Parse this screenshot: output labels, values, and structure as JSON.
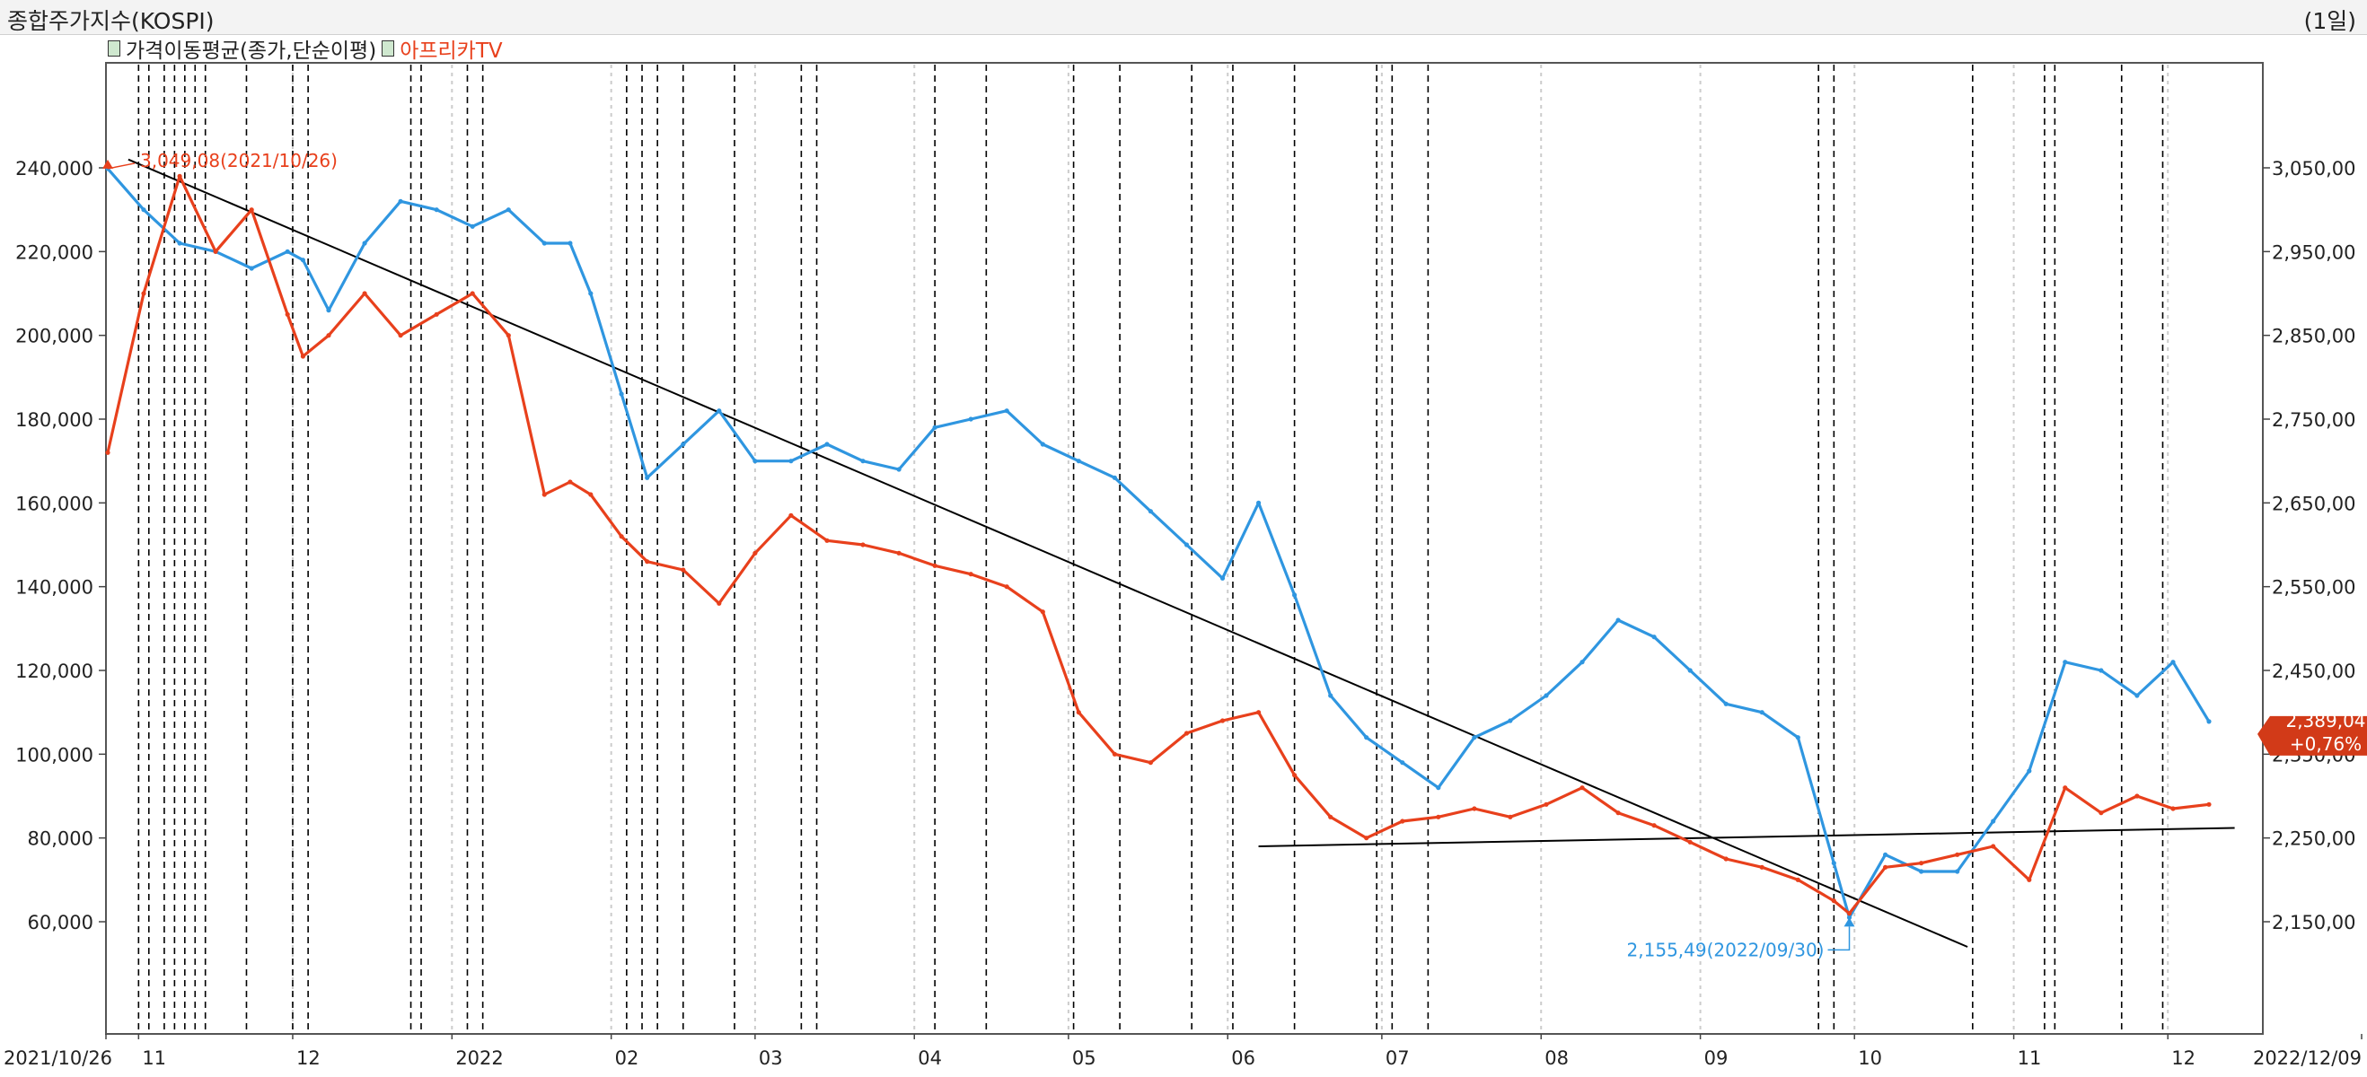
{
  "header": {
    "title": "종합주가지수(KOSPI)",
    "period": "(1일)"
  },
  "legend": {
    "items": [
      {
        "label": "가격이동평균(종가,단순이평)",
        "color": "#222222"
      },
      {
        "label": "아프리카TV",
        "color": "#e8401c"
      }
    ]
  },
  "colors": {
    "kospi": "#2f96e0",
    "afreeca": "#e8401c",
    "trend": "#000000",
    "grid_dotted": "#cccccc",
    "vline_dashed": "#000000",
    "current_badge": "#d23a18"
  },
  "chart_data": {
    "type": "line",
    "title": "종합주가지수(KOSPI)",
    "x_range": [
      "2021/10/26",
      "2022/12/09"
    ],
    "x_ticks": [
      "2021/10/26",
      "11",
      "12",
      "2022",
      "02",
      "03",
      "04",
      "05",
      "06",
      "07",
      "08",
      "09",
      "10",
      "11",
      "12",
      "2022/12/09"
    ],
    "y_left": {
      "min": 44000,
      "max": 252000,
      "ticks": [
        "240,000",
        "220,000",
        "200,000",
        "180,000",
        "160,000",
        "140,000",
        "120,000",
        "100,000",
        "80,000",
        "60,000"
      ]
    },
    "y_right": {
      "min": 2074,
      "max": 3115,
      "ticks": [
        "3,050,00",
        "2,950,00",
        "2,850,00",
        "2,750,00",
        "2,650,00",
        "2,550,00",
        "2,450,00",
        "2,350,00",
        "2,250,00",
        "2,150,00"
      ]
    },
    "series": [
      {
        "name": "종합주가지수(KOSPI)",
        "axis": "right",
        "points": [
          [
            "2021/10/26",
            3049
          ],
          [
            "2021/11/02",
            3000
          ],
          [
            "2021/11/09",
            2960
          ],
          [
            "2021/11/16",
            2950
          ],
          [
            "2021/11/23",
            2930
          ],
          [
            "2021/11/30",
            2950
          ],
          [
            "2021/12/03",
            2940
          ],
          [
            "2021/12/08",
            2880
          ],
          [
            "2021/12/15",
            2960
          ],
          [
            "2021/12/22",
            3010
          ],
          [
            "2021/12/29",
            3000
          ],
          [
            "2022/01/05",
            2980
          ],
          [
            "2022/01/12",
            3000
          ],
          [
            "2022/01/19",
            2960
          ],
          [
            "2022/01/24",
            2960
          ],
          [
            "2022/01/28",
            2900
          ],
          [
            "2022/02/03",
            2780
          ],
          [
            "2022/02/08",
            2680
          ],
          [
            "2022/02/15",
            2720
          ],
          [
            "2022/02/22",
            2760
          ],
          [
            "2022/03/01",
            2700
          ],
          [
            "2022/03/08",
            2700
          ],
          [
            "2022/03/15",
            2720
          ],
          [
            "2022/03/22",
            2700
          ],
          [
            "2022/03/29",
            2690
          ],
          [
            "2022/04/05",
            2740
          ],
          [
            "2022/04/12",
            2750
          ],
          [
            "2022/04/19",
            2760
          ],
          [
            "2022/04/26",
            2720
          ],
          [
            "2022/05/03",
            2700
          ],
          [
            "2022/05/10",
            2680
          ],
          [
            "2022/05/17",
            2640
          ],
          [
            "2022/05/24",
            2600
          ],
          [
            "2022/05/31",
            2560
          ],
          [
            "2022/06/07",
            2650
          ],
          [
            "2022/06/14",
            2540
          ],
          [
            "2022/06/21",
            2420
          ],
          [
            "2022/06/28",
            2370
          ],
          [
            "2022/07/05",
            2340
          ],
          [
            "2022/07/12",
            2310
          ],
          [
            "2022/07/19",
            2370
          ],
          [
            "2022/07/26",
            2390
          ],
          [
            "2022/08/02",
            2420
          ],
          [
            "2022/08/09",
            2460
          ],
          [
            "2022/08/16",
            2510
          ],
          [
            "2022/08/23",
            2490
          ],
          [
            "2022/08/30",
            2450
          ],
          [
            "2022/09/06",
            2410
          ],
          [
            "2022/09/13",
            2400
          ],
          [
            "2022/09/20",
            2370
          ],
          [
            "2022/09/27",
            2220
          ],
          [
            "2022/09/30",
            2155
          ],
          [
            "2022/10/07",
            2230
          ],
          [
            "2022/10/14",
            2210
          ],
          [
            "2022/10/21",
            2210
          ],
          [
            "2022/10/28",
            2270
          ],
          [
            "2022/11/04",
            2330
          ],
          [
            "2022/11/11",
            2460
          ],
          [
            "2022/11/18",
            2450
          ],
          [
            "2022/11/25",
            2420
          ],
          [
            "2022/12/02",
            2460
          ],
          [
            "2022/12/09",
            2389
          ]
        ]
      },
      {
        "name": "아프리카TV",
        "axis": "left",
        "points": [
          [
            "2021/10/26",
            172000
          ],
          [
            "2021/11/02",
            210000
          ],
          [
            "2021/11/09",
            238000
          ],
          [
            "2021/11/16",
            220000
          ],
          [
            "2021/11/23",
            230000
          ],
          [
            "2021/11/30",
            205000
          ],
          [
            "2021/12/03",
            195000
          ],
          [
            "2021/12/08",
            200000
          ],
          [
            "2021/12/15",
            210000
          ],
          [
            "2021/12/22",
            200000
          ],
          [
            "2021/12/29",
            205000
          ],
          [
            "2022/01/05",
            210000
          ],
          [
            "2022/01/12",
            200000
          ],
          [
            "2022/01/19",
            162000
          ],
          [
            "2022/01/24",
            165000
          ],
          [
            "2022/01/28",
            162000
          ],
          [
            "2022/02/03",
            152000
          ],
          [
            "2022/02/08",
            146000
          ],
          [
            "2022/02/15",
            144000
          ],
          [
            "2022/02/22",
            136000
          ],
          [
            "2022/03/01",
            148000
          ],
          [
            "2022/03/08",
            157000
          ],
          [
            "2022/03/15",
            151000
          ],
          [
            "2022/03/22",
            150000
          ],
          [
            "2022/03/29",
            148000
          ],
          [
            "2022/04/05",
            145000
          ],
          [
            "2022/04/12",
            143000
          ],
          [
            "2022/04/19",
            140000
          ],
          [
            "2022/04/26",
            134000
          ],
          [
            "2022/05/03",
            110000
          ],
          [
            "2022/05/10",
            100000
          ],
          [
            "2022/05/17",
            98000
          ],
          [
            "2022/05/24",
            105000
          ],
          [
            "2022/05/31",
            108000
          ],
          [
            "2022/06/07",
            110000
          ],
          [
            "2022/06/14",
            95000
          ],
          [
            "2022/06/21",
            85000
          ],
          [
            "2022/06/28",
            80000
          ],
          [
            "2022/07/05",
            84000
          ],
          [
            "2022/07/12",
            85000
          ],
          [
            "2022/07/19",
            87000
          ],
          [
            "2022/07/26",
            85000
          ],
          [
            "2022/08/02",
            88000
          ],
          [
            "2022/08/09",
            92000
          ],
          [
            "2022/08/16",
            86000
          ],
          [
            "2022/08/23",
            83000
          ],
          [
            "2022/08/30",
            79000
          ],
          [
            "2022/09/06",
            75000
          ],
          [
            "2022/09/13",
            73000
          ],
          [
            "2022/09/20",
            70000
          ],
          [
            "2022/09/27",
            65000
          ],
          [
            "2022/09/30",
            62000
          ],
          [
            "2022/10/07",
            73000
          ],
          [
            "2022/10/14",
            74000
          ],
          [
            "2022/10/21",
            76000
          ],
          [
            "2022/10/28",
            78000
          ],
          [
            "2022/11/04",
            70000
          ],
          [
            "2022/11/11",
            92000
          ],
          [
            "2022/11/18",
            86000
          ],
          [
            "2022/11/25",
            90000
          ],
          [
            "2022/12/02",
            87000
          ],
          [
            "2022/12/09",
            88000
          ]
        ]
      }
    ],
    "annotations": {
      "high_label": "3,049,08(2021/10/26)",
      "low_label": "2,155,49(2022/09/30)",
      "current_price": "2,389,04",
      "current_change": "+0,76%"
    },
    "trend_lines": [
      {
        "name": "downtrend",
        "axis": "right",
        "from": [
          "2021/10/30",
          3060
        ],
        "to": [
          "2022/10/23",
          2120
        ]
      },
      {
        "name": "support",
        "axis": "right",
        "from": [
          "2022/06/07",
          2240
        ],
        "to": [
          "2022/12/14",
          2262
        ]
      }
    ],
    "vertical_markers": {
      "dashed": [
        "2021/11/01",
        "2021/11/03",
        "2021/11/06",
        "2021/11/08",
        "2021/11/10",
        "2021/11/12",
        "2021/11/14",
        "2021/11/22",
        "2021/12/01",
        "2021/12/04",
        "2021/12/24",
        "2021/12/26",
        "2022/01/04",
        "2022/01/07",
        "2022/02/04",
        "2022/02/07",
        "2022/02/10",
        "2022/02/15",
        "2022/02/25",
        "2022/03/10",
        "2022/03/13",
        "2022/04/05",
        "2022/04/15",
        "2022/05/02",
        "2022/05/11",
        "2022/05/25",
        "2022/06/02",
        "2022/06/14",
        "2022/06/30",
        "2022/07/03",
        "2022/07/10",
        "2022/09/24",
        "2022/09/27",
        "2022/10/24",
        "2022/11/07",
        "2022/11/09",
        "2022/11/22",
        "2022/11/30"
      ],
      "dotted": [
        "2021/12/01",
        "2022/01/01",
        "2022/02/01",
        "2022/03/01",
        "2022/04/01",
        "2022/05/01",
        "2022/06/01",
        "2022/07/01",
        "2022/08/01",
        "2022/09/01",
        "2022/10/01",
        "2022/11/01",
        "2022/12/01"
      ]
    },
    "grid": true,
    "legend_position": "top-left"
  }
}
